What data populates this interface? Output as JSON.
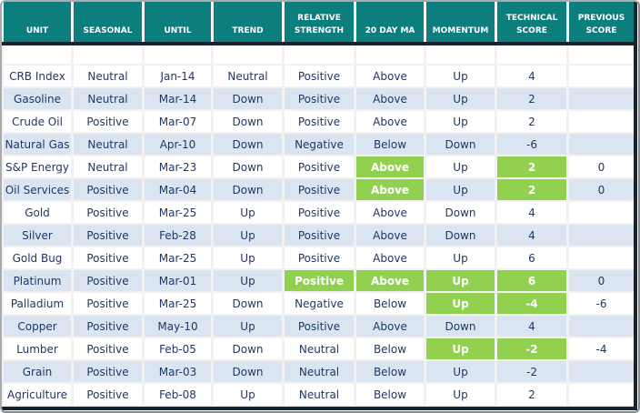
{
  "colors": {
    "header_teal": "#0d7e7e",
    "row_alt_blue": "#dbe5f1",
    "highlight_green": "#92d050",
    "dark_outline_navy": "#17242f",
    "text_navy": "#1f3864"
  },
  "table": {
    "column_keys": [
      "unit",
      "seasonal",
      "until",
      "trend",
      "relative_strength",
      "ma20",
      "momentum",
      "technical_score",
      "previous_score"
    ],
    "columns": [
      {
        "key": "unit",
        "label": "UNIT"
      },
      {
        "key": "seasonal",
        "label": "SEASONAL"
      },
      {
        "key": "until",
        "label": "UNTIL"
      },
      {
        "key": "trend",
        "label": "TREND"
      },
      {
        "key": "relative_strength",
        "label": "RELATIVE STRENGTH"
      },
      {
        "key": "ma20",
        "label": "20 DAY MA"
      },
      {
        "key": "momentum",
        "label": "MOMENTUM"
      },
      {
        "key": "technical_score",
        "label": "TECHNICAL SCORE"
      },
      {
        "key": "previous_score",
        "label": "PREVIOUS SCORE"
      }
    ],
    "rows": [
      {
        "unit": "CRB Index",
        "seasonal": "Neutral",
        "until": "Jan-14",
        "trend": "Neutral",
        "relative_strength": "Positive",
        "ma20": "Above",
        "momentum": "Up",
        "technical_score": "4",
        "previous_score": "",
        "highlights": []
      },
      {
        "unit": "Gasoline",
        "seasonal": "Neutral",
        "until": "Mar-14",
        "trend": "Down",
        "relative_strength": "Positive",
        "ma20": "Above",
        "momentum": "Up",
        "technical_score": "2",
        "previous_score": "",
        "highlights": []
      },
      {
        "unit": "Crude Oil",
        "seasonal": "Positive",
        "until": "Mar-07",
        "trend": "Down",
        "relative_strength": "Positive",
        "ma20": "Above",
        "momentum": "Up",
        "technical_score": "2",
        "previous_score": "",
        "highlights": []
      },
      {
        "unit": "Natural Gas",
        "seasonal": "Neutral",
        "until": "Apr-10",
        "trend": "Down",
        "relative_strength": "Negative",
        "ma20": "Below",
        "momentum": "Down",
        "technical_score": "-6",
        "previous_score": "",
        "highlights": []
      },
      {
        "unit": "S&P Energy",
        "seasonal": "Neutral",
        "until": "Mar-23",
        "trend": "Down",
        "relative_strength": "Positive",
        "ma20": "Above",
        "momentum": "Up",
        "technical_score": "2",
        "previous_score": "0",
        "highlights": [
          "ma20",
          "technical_score"
        ]
      },
      {
        "unit": "Oil Services",
        "seasonal": "Positive",
        "until": "Mar-04",
        "trend": "Down",
        "relative_strength": "Positive",
        "ma20": "Above",
        "momentum": "Up",
        "technical_score": "2",
        "previous_score": "0",
        "highlights": [
          "ma20",
          "technical_score"
        ]
      },
      {
        "unit": "Gold",
        "seasonal": "Positive",
        "until": "Mar-25",
        "trend": "Up",
        "relative_strength": "Positive",
        "ma20": "Above",
        "momentum": "Down",
        "technical_score": "4",
        "previous_score": "",
        "highlights": []
      },
      {
        "unit": "Silver",
        "seasonal": "Positive",
        "until": "Feb-28",
        "trend": "Up",
        "relative_strength": "Positive",
        "ma20": "Above",
        "momentum": "Down",
        "technical_score": "4",
        "previous_score": "",
        "highlights": []
      },
      {
        "unit": "Gold Bug",
        "seasonal": "Positive",
        "until": "Mar-25",
        "trend": "Up",
        "relative_strength": "Positive",
        "ma20": "Above",
        "momentum": "Up",
        "technical_score": "6",
        "previous_score": "",
        "highlights": []
      },
      {
        "unit": "Platinum",
        "seasonal": "Positive",
        "until": "Mar-01",
        "trend": "Up",
        "relative_strength": "Positive",
        "ma20": "Above",
        "momentum": "Up",
        "technical_score": "6",
        "previous_score": "0",
        "highlights": [
          "relative_strength",
          "ma20",
          "momentum",
          "technical_score"
        ]
      },
      {
        "unit": "Palladium",
        "seasonal": "Positive",
        "until": "Mar-25",
        "trend": "Down",
        "relative_strength": "Negative",
        "ma20": "Below",
        "momentum": "Up",
        "technical_score": "-4",
        "previous_score": "-6",
        "highlights": [
          "momentum",
          "technical_score"
        ]
      },
      {
        "unit": "Copper",
        "seasonal": "Positive",
        "until": "May-10",
        "trend": "Up",
        "relative_strength": "Positive",
        "ma20": "Above",
        "momentum": "Down",
        "technical_score": "4",
        "previous_score": "",
        "highlights": []
      },
      {
        "unit": "Lumber",
        "seasonal": "Positive",
        "until": "Feb-05",
        "trend": "Down",
        "relative_strength": "Neutral",
        "ma20": "Below",
        "momentum": "Up",
        "technical_score": "-2",
        "previous_score": "-4",
        "highlights": [
          "momentum",
          "technical_score"
        ]
      },
      {
        "unit": "Grain",
        "seasonal": "Positive",
        "until": "Mar-03",
        "trend": "Down",
        "relative_strength": "Neutral",
        "ma20": "Below",
        "momentum": "Up",
        "technical_score": "-2",
        "previous_score": "",
        "highlights": []
      },
      {
        "unit": "Agriculture",
        "seasonal": "Positive",
        "until": "Feb-08",
        "trend": "Up",
        "relative_strength": "Neutral",
        "ma20": "Below",
        "momentum": "Up",
        "technical_score": "2",
        "previous_score": "",
        "highlights": []
      }
    ]
  }
}
